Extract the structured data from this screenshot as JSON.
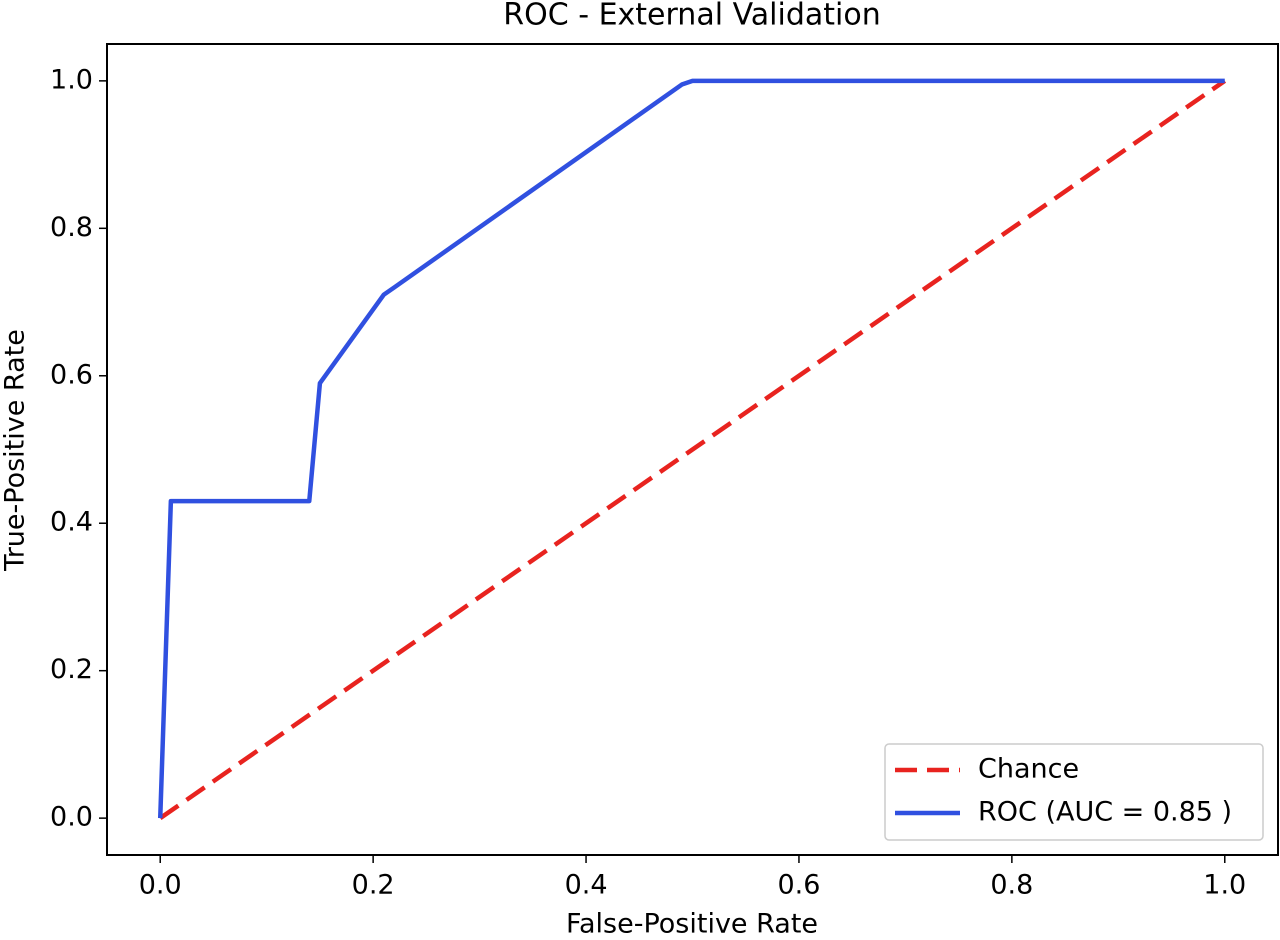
{
  "chart_data": {
    "type": "line",
    "title": "ROC - External Validation",
    "x_label": "False-Positive Rate",
    "y_label": "True-Positive Rate",
    "xlim": [
      -0.05,
      1.05
    ],
    "ylim": [
      -0.05,
      1.05
    ],
    "xticks": [
      {
        "value": 0,
        "label": "0.0"
      },
      0.2,
      0.4,
      0.6,
      0.8,
      {
        "value": 1,
        "label": "1.0"
      }
    ],
    "yticks": [
      {
        "value": 0,
        "label": "0.0"
      },
      0.2,
      0.4,
      0.6,
      0.8,
      {
        "value": 1,
        "label": "1.0"
      }
    ],
    "legend": "lower right",
    "series": [
      {
        "name": "Chance",
        "color": "#e8231f",
        "linestyle": "dashed",
        "x": [
          0,
          1
        ],
        "values": [
          0,
          1
        ]
      },
      {
        "name": "ROC (AUC = 0.85 )",
        "color": "#3050e0",
        "linestyle": "solid",
        "x": [
          0,
          0.01,
          0.14,
          0.15,
          0.21,
          0.22,
          0.49,
          0.5,
          1
        ],
        "values": [
          0,
          0.43,
          0.43,
          0.59,
          0.71,
          0.72,
          0.995,
          1,
          1
        ]
      }
    ]
  }
}
